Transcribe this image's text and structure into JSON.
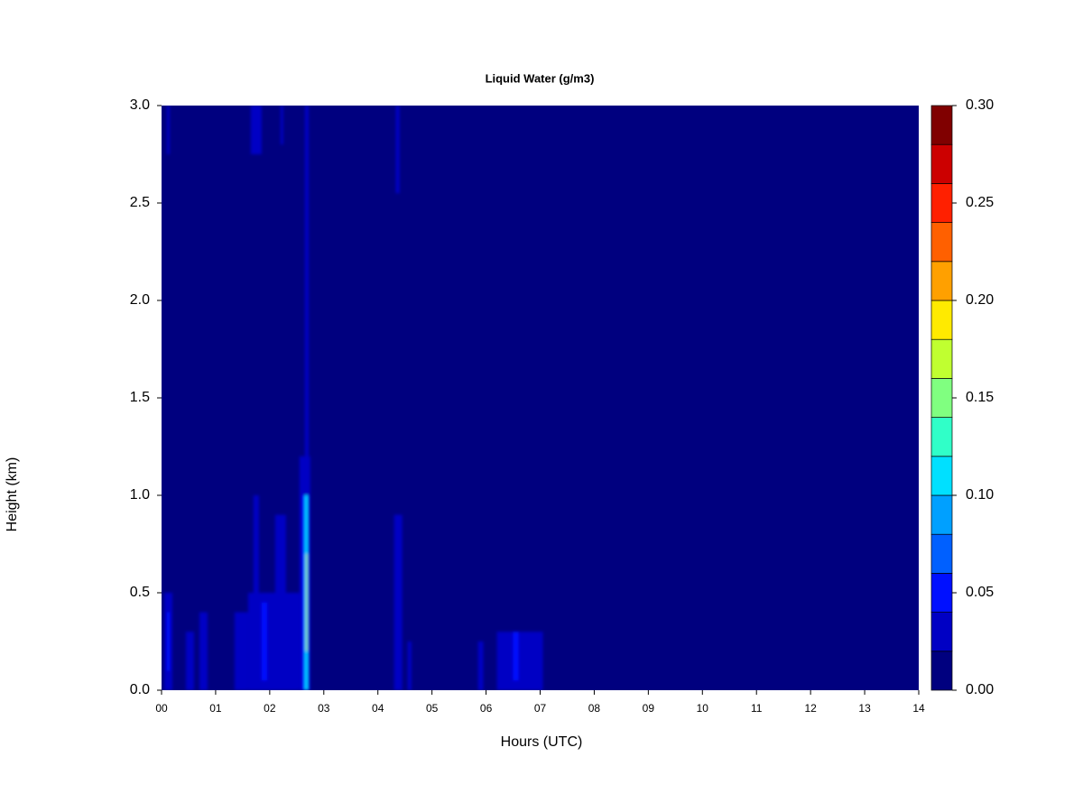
{
  "chart_data": {
    "type": "heatmap",
    "title": "Liquid Water (g/m3)",
    "x_label": "Hours (UTC)",
    "y_label": "Height (km)",
    "xlim": [
      0,
      14
    ],
    "ylim": [
      0,
      3
    ],
    "xticks": [
      {
        "value": 0,
        "label": "00"
      },
      {
        "value": 1,
        "label": "01"
      },
      {
        "value": 2,
        "label": "02"
      },
      {
        "value": 3,
        "label": "03"
      },
      {
        "value": 4,
        "label": "04"
      },
      {
        "value": 5,
        "label": "05"
      },
      {
        "value": 6,
        "label": "06"
      },
      {
        "value": 7,
        "label": "07"
      },
      {
        "value": 8,
        "label": "08"
      },
      {
        "value": 9,
        "label": "09"
      },
      {
        "value": 10,
        "label": "10"
      },
      {
        "value": 11,
        "label": "11"
      },
      {
        "value": 12,
        "label": "12"
      },
      {
        "value": 13,
        "label": "13"
      },
      {
        "value": 14,
        "label": "14"
      }
    ],
    "yticks": [
      {
        "value": 0,
        "label": "0.0"
      },
      {
        "value": 0.5,
        "label": "0.5"
      },
      {
        "value": 1,
        "label": "1.0"
      },
      {
        "value": 1.5,
        "label": "1.5"
      },
      {
        "value": 2,
        "label": "2.0"
      },
      {
        "value": 2.5,
        "label": "2.5"
      },
      {
        "value": 3,
        "label": "3.0"
      }
    ],
    "levels": [
      0,
      0.02,
      0.04,
      0.06,
      0.08,
      0.1,
      0.12,
      0.14,
      0.16,
      0.18,
      0.2,
      0.22,
      0.24,
      0.26,
      0.28,
      0.3
    ],
    "colors": [
      "#00007f",
      "#0000c4",
      "#0010ff",
      "#0060ff",
      "#00a0ff",
      "#00e0ff",
      "#30ffc8",
      "#80ff80",
      "#c0ff30",
      "#ffea00",
      "#ffa000",
      "#ff6000",
      "#ff2000",
      "#cc0000",
      "#800000"
    ],
    "colorbar_ticks": [
      {
        "value": 0,
        "label": "0.00"
      },
      {
        "value": 0.05,
        "label": "0.05"
      },
      {
        "value": 0.1,
        "label": "0.10"
      },
      {
        "value": 0.15,
        "label": "0.15"
      },
      {
        "value": 0.2,
        "label": "0.20"
      },
      {
        "value": 0.25,
        "label": "0.25"
      },
      {
        "value": 0.3,
        "label": "0.30"
      }
    ],
    "base_value": 0,
    "features": [
      {
        "x": [
          0.05,
          0.2
        ],
        "y": [
          0,
          0.5
        ],
        "value": 0.03
      },
      {
        "x": [
          0.1,
          0.15
        ],
        "y": [
          0.1,
          0.4
        ],
        "value": 0.05
      },
      {
        "x": [
          0.45,
          0.6
        ],
        "y": [
          0,
          0.3
        ],
        "value": 0.025
      },
      {
        "x": [
          0.7,
          0.85
        ],
        "y": [
          0,
          0.4
        ],
        "value": 0.025
      },
      {
        "x": [
          1.35,
          1.6
        ],
        "y": [
          0,
          0.4
        ],
        "value": 0.025
      },
      {
        "x": [
          1.6,
          2.55
        ],
        "y": [
          0,
          0.5
        ],
        "value": 0.025
      },
      {
        "x": [
          1.7,
          1.8
        ],
        "y": [
          0,
          1
        ],
        "value": 0.03
      },
      {
        "x": [
          1.85,
          1.95
        ],
        "y": [
          0.05,
          0.45
        ],
        "value": 0.05
      },
      {
        "x": [
          2.1,
          2.3
        ],
        "y": [
          0,
          0.9
        ],
        "value": 0.03
      },
      {
        "x": [
          2.55,
          2.75
        ],
        "y": [
          0,
          1.2
        ],
        "value": 0.03
      },
      {
        "x": [
          2.6,
          2.72
        ],
        "y": [
          0,
          1
        ],
        "value": 0.05
      },
      {
        "x": [
          2.65,
          2.7
        ],
        "y": [
          0,
          1
        ],
        "value": 0.11
      },
      {
        "x": [
          2.67,
          2.69
        ],
        "y": [
          0.2,
          0.7
        ],
        "value": 0.17
      },
      {
        "x": [
          2.65,
          2.72
        ],
        "y": [
          1,
          3
        ],
        "value": 0.025
      },
      {
        "x": [
          1.65,
          1.85
        ],
        "y": [
          2.75,
          3
        ],
        "value": 0.025
      },
      {
        "x": [
          2.2,
          2.25
        ],
        "y": [
          2.8,
          3
        ],
        "value": 0.025
      },
      {
        "x": [
          0.1,
          0.15
        ],
        "y": [
          2.75,
          3
        ],
        "value": 0.025
      },
      {
        "x": [
          4.3,
          4.45
        ],
        "y": [
          0,
          0.9
        ],
        "value": 0.03
      },
      {
        "x": [
          4.33,
          4.4
        ],
        "y": [
          2.55,
          3
        ],
        "value": 0.025
      },
      {
        "x": [
          4.55,
          4.62
        ],
        "y": [
          0,
          0.25
        ],
        "value": 0.025
      },
      {
        "x": [
          5.85,
          5.95
        ],
        "y": [
          0,
          0.25
        ],
        "value": 0.025
      },
      {
        "x": [
          6.2,
          7.05
        ],
        "y": [
          0,
          0.3
        ],
        "value": 0.025
      },
      {
        "x": [
          6.5,
          6.6
        ],
        "y": [
          0.05,
          0.3
        ],
        "value": 0.04
      }
    ]
  }
}
